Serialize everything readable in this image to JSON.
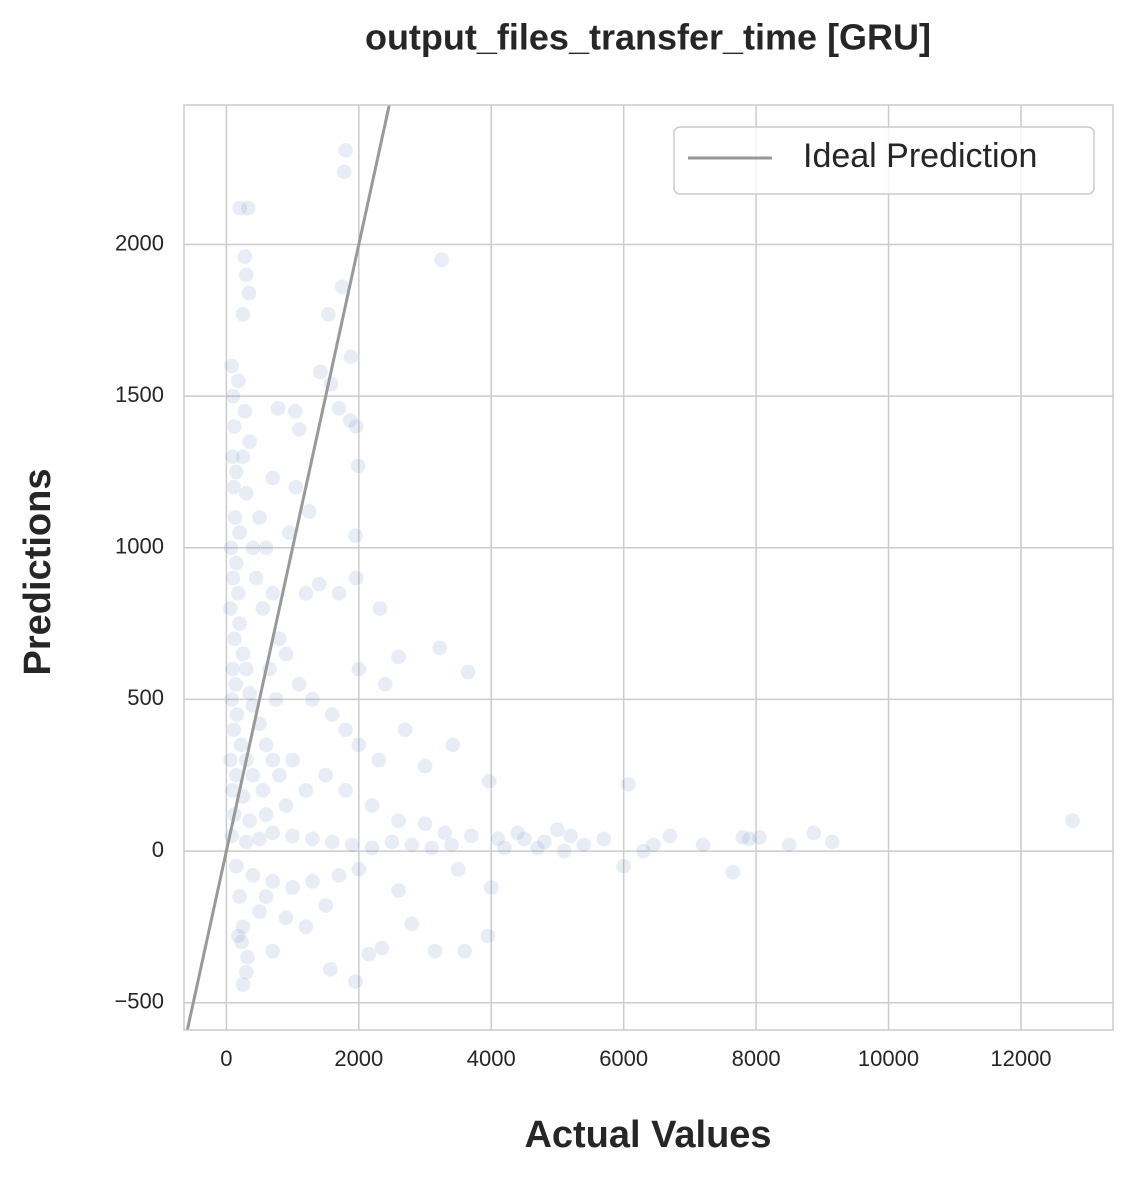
{
  "chart_data": {
    "type": "scatter",
    "title": "output_files_transfer_time [GRU]",
    "x_label": "Actual Values",
    "y_label": "Predictions",
    "xlim": [
      -640,
      13390
    ],
    "ylim": [
      -590,
      2460
    ],
    "xticks": [
      0,
      2000,
      4000,
      6000,
      8000,
      10000,
      12000
    ],
    "yticks": [
      {
        "value": -500,
        "label": "−500"
      },
      0,
      500,
      1000,
      1500,
      2000
    ],
    "grid": true,
    "legend": "upper right",
    "series": [
      {
        "type": "scatter",
        "color": "#4c72b0",
        "x": [
          1800,
          1780,
          200,
          330,
          3250,
          280,
          300,
          340,
          1750,
          250,
          1540,
          1880,
          1960,
          1870,
          1700,
          1420,
          1580,
          1040,
          1100,
          780,
          1990,
          1950,
          1960,
          2320,
          3220,
          3650,
          2600,
          3970,
          6070,
          3420,
          3000,
          12780,
          9150,
          8870,
          8500,
          8050,
          7650,
          7200,
          6700,
          6450,
          6300,
          6000,
          5700,
          5400,
          5000,
          4800,
          4500,
          4200,
          4000,
          3950,
          3600,
          3150,
          2350,
          1950,
          1570,
          2150,
          700,
          250,
          300,
          230,
          7900,
          7800,
          5200,
          3500,
          2800,
          2600,
          80,
          100,
          120,
          90,
          110,
          130,
          70,
          150,
          100,
          60,
          180,
          120,
          200,
          90,
          250,
          140,
          300,
          80,
          350,
          160,
          400,
          110,
          220,
          500,
          60,
          300,
          600,
          150,
          400,
          700,
          90,
          250,
          550,
          800,
          1000,
          120,
          350,
          600,
          900,
          1200,
          1500,
          80,
          300,
          500,
          700,
          1000,
          1300,
          1600,
          1900,
          2200,
          2500,
          2800,
          3100,
          3400,
          150,
          400,
          700,
          1000,
          1300,
          1700,
          200,
          500,
          900,
          1200,
          250,
          320,
          180,
          600,
          1500,
          2000,
          450,
          500,
          600,
          700,
          800,
          900,
          1100,
          1300,
          1600,
          1800,
          2000,
          2300,
          2700,
          150,
          200,
          300,
          400,
          550,
          650,
          750,
          1200,
          1400,
          1700,
          2000,
          2400,
          1050,
          950,
          1250,
          280,
          350,
          180,
          700,
          250,
          1800,
          2200,
          2600,
          3000,
          3300,
          3700,
          4100,
          4400,
          4700,
          5100
        ],
        "y": [
          2310,
          2240,
          2120,
          2120,
          1950,
          1960,
          1900,
          1840,
          1860,
          1770,
          1770,
          1630,
          1400,
          1420,
          1460,
          1580,
          1540,
          1450,
          1390,
          1460,
          1270,
          1040,
          900,
          800,
          670,
          590,
          640,
          230,
          220,
          350,
          280,
          100,
          30,
          60,
          20,
          45,
          -70,
          20,
          50,
          20,
          0,
          -50,
          40,
          20,
          70,
          30,
          40,
          10,
          -120,
          -280,
          -330,
          -330,
          -320,
          -430,
          -390,
          -340,
          -330,
          -440,
          -400,
          -300,
          40,
          45,
          50,
          -60,
          -240,
          -130,
          1600,
          1500,
          1400,
          1300,
          1200,
          1100,
          1000,
          950,
          900,
          800,
          850,
          700,
          750,
          600,
          650,
          550,
          600,
          500,
          520,
          450,
          480,
          400,
          350,
          420,
          300,
          300,
          350,
          250,
          250,
          300,
          200,
          180,
          200,
          250,
          300,
          120,
          100,
          120,
          150,
          200,
          250,
          50,
          30,
          40,
          60,
          50,
          40,
          30,
          20,
          10,
          30,
          20,
          10,
          20,
          -50,
          -80,
          -100,
          -120,
          -100,
          -80,
          -150,
          -200,
          -220,
          -250,
          -250,
          -350,
          -280,
          -150,
          -180,
          -60,
          900,
          1100,
          1000,
          850,
          700,
          650,
          550,
          500,
          450,
          400,
          350,
          300,
          400,
          1250,
          1050,
          1180,
          1000,
          800,
          600,
          500,
          850,
          880,
          850,
          600,
          550,
          1200,
          1050,
          1120,
          1450,
          1350,
          1550,
          1230,
          1300,
          200,
          150,
          100,
          90,
          60,
          50,
          40,
          60,
          10,
          0
        ]
      },
      {
        "type": "line",
        "name": "Ideal Prediction",
        "color": "#999999",
        "x": [
          -590,
          2460
        ],
        "y": [
          -590,
          2460
        ]
      }
    ]
  }
}
